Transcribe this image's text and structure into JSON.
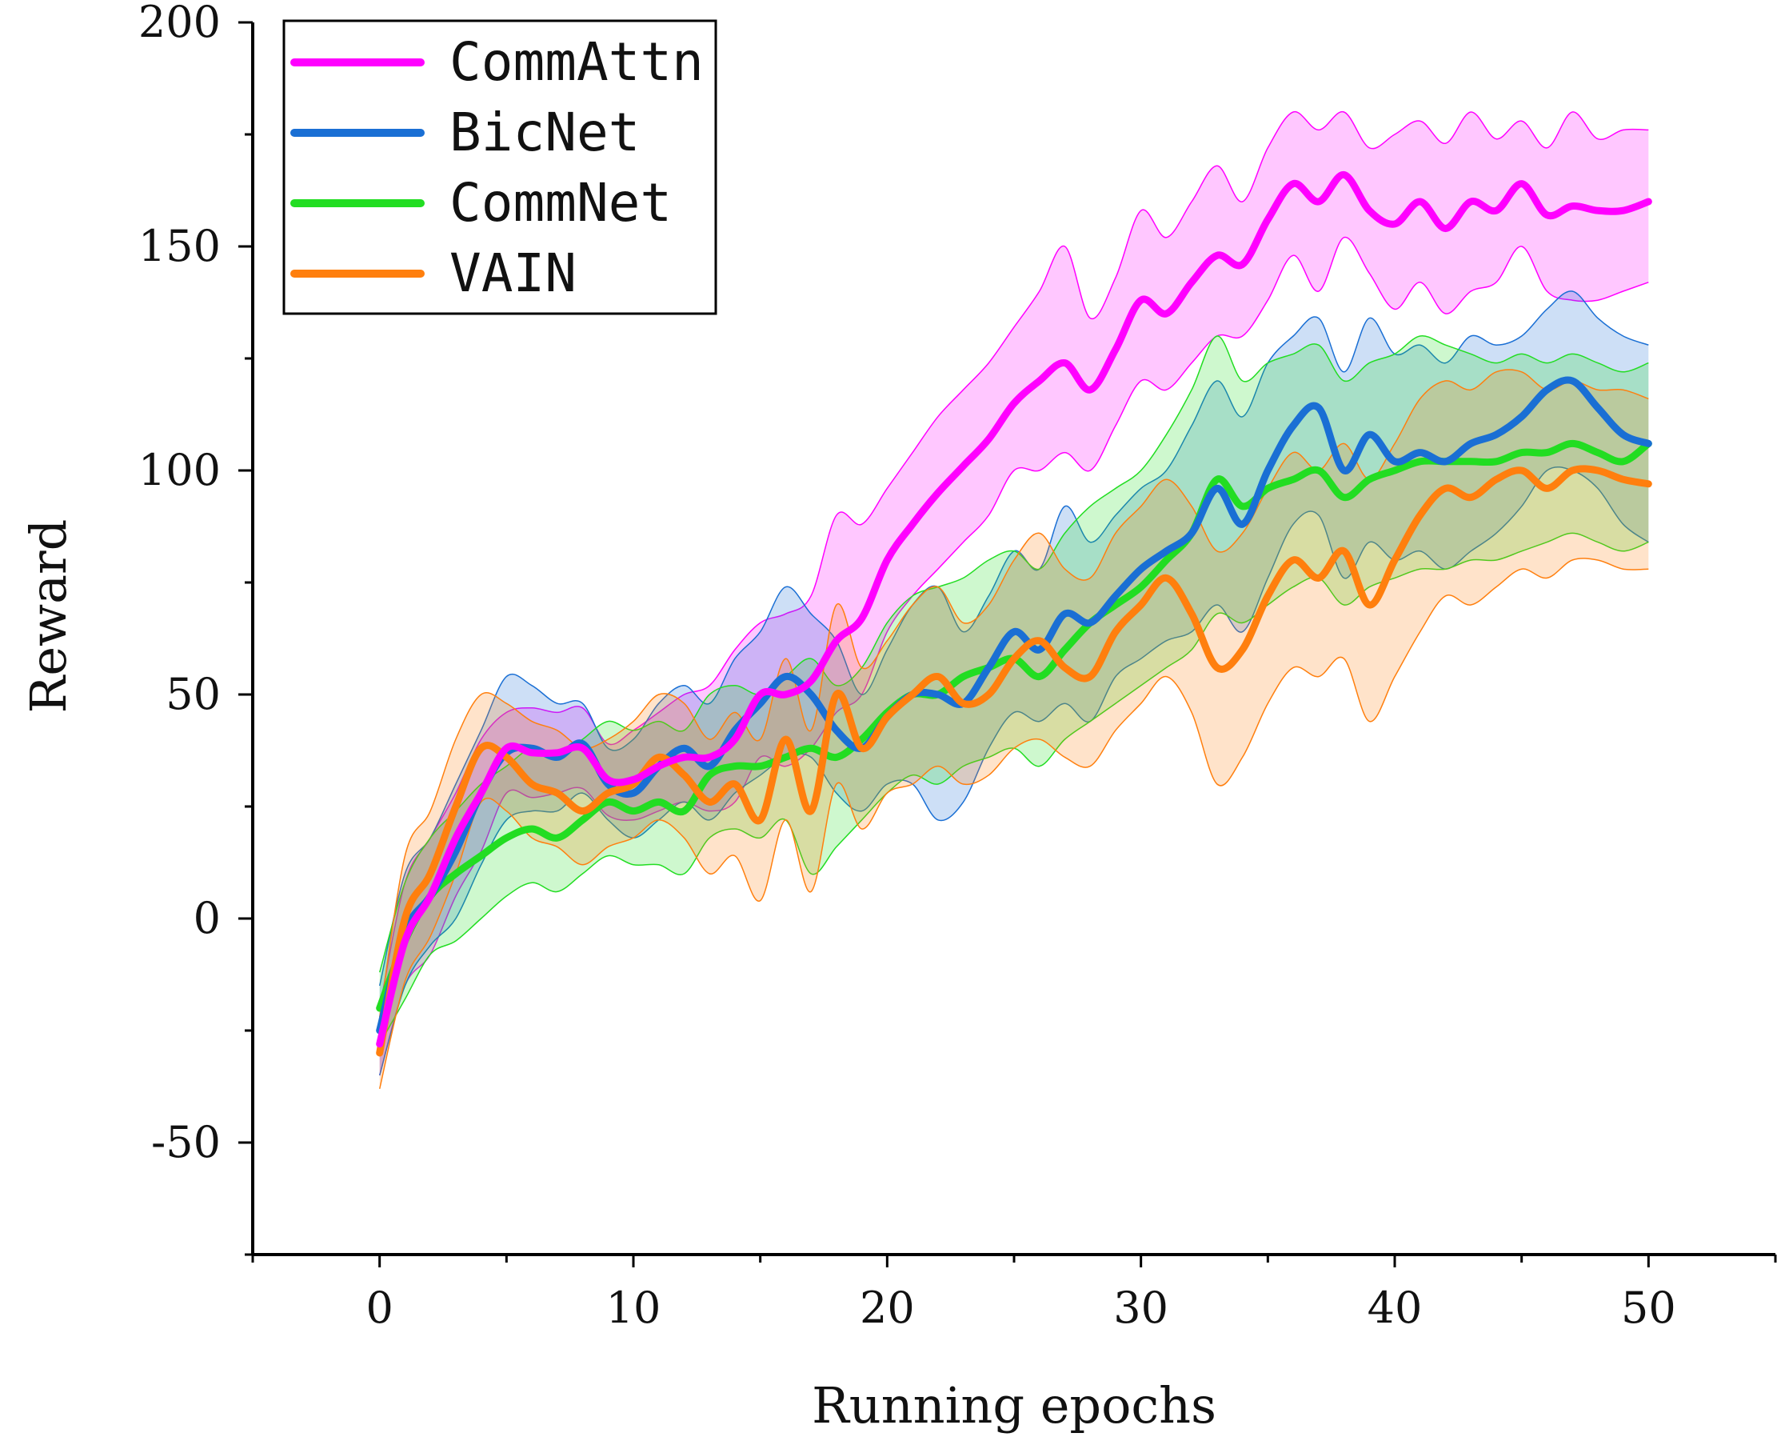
{
  "chart_data": {
    "type": "line",
    "title": "",
    "xlabel": "Running epochs",
    "ylabel": "Reward",
    "xlim": [
      -5,
      55
    ],
    "ylim": [
      -75,
      200
    ],
    "x_ticks": [
      0,
      10,
      20,
      30,
      40,
      50
    ],
    "y_ticks": [
      -50,
      0,
      50,
      100,
      150,
      200
    ],
    "legend_position": "top-left",
    "grid": false,
    "x": [
      0,
      1,
      2,
      3,
      4,
      5,
      6,
      7,
      8,
      9,
      10,
      11,
      12,
      13,
      14,
      15,
      16,
      17,
      18,
      19,
      20,
      21,
      22,
      23,
      24,
      25,
      26,
      27,
      28,
      29,
      30,
      31,
      32,
      33,
      34,
      35,
      36,
      37,
      38,
      39,
      40,
      41,
      42,
      43,
      44,
      45,
      46,
      47,
      48,
      49,
      50
    ],
    "series": [
      {
        "name": "CommAttn",
        "color": "#ff00ff",
        "values": [
          -28,
          -5,
          5,
          18,
          28,
          38,
          37,
          37,
          38,
          31,
          31,
          34,
          36,
          36,
          40,
          50,
          50,
          53,
          62,
          67,
          80,
          88,
          95,
          101,
          107,
          115,
          120,
          124,
          118,
          127,
          138,
          135,
          142,
          148,
          146,
          156,
          164,
          160,
          166,
          158,
          155,
          160,
          154,
          160,
          158,
          164,
          157,
          159,
          158,
          158,
          160
        ],
        "upper": [
          -20,
          8,
          18,
          28,
          40,
          46,
          47,
          46,
          47,
          39,
          42,
          46,
          50,
          52,
          60,
          66,
          68,
          72,
          90,
          88,
          96,
          104,
          112,
          118,
          124,
          132,
          140,
          150,
          134,
          143,
          158,
          152,
          160,
          168,
          160,
          172,
          180,
          176,
          180,
          172,
          175,
          178,
          173,
          180,
          174,
          178,
          172,
          180,
          174,
          176,
          176
        ],
        "lower": [
          -35,
          -15,
          -8,
          5,
          15,
          28,
          27,
          28,
          29,
          23,
          22,
          24,
          26,
          24,
          26,
          36,
          34,
          38,
          46,
          50,
          64,
          72,
          78,
          84,
          90,
          100,
          100,
          104,
          100,
          110,
          120,
          118,
          124,
          130,
          130,
          138,
          148,
          140,
          152,
          144,
          136,
          142,
          135,
          140,
          142,
          150,
          140,
          138,
          138,
          140,
          142
        ]
      },
      {
        "name": "BicNet",
        "color": "#1a6fd4",
        "values": [
          -25,
          -3,
          5,
          15,
          28,
          37,
          38,
          36,
          39,
          30,
          28,
          34,
          38,
          34,
          42,
          48,
          54,
          50,
          42,
          38,
          45,
          50,
          50,
          48,
          56,
          64,
          60,
          68,
          66,
          72,
          78,
          82,
          86,
          96,
          88,
          100,
          110,
          114,
          100,
          108,
          102,
          104,
          102,
          106,
          108,
          112,
          118,
          120,
          114,
          108,
          106
        ],
        "upper": [
          -15,
          10,
          18,
          30,
          42,
          54,
          52,
          48,
          48,
          38,
          40,
          48,
          52,
          48,
          58,
          64,
          74,
          68,
          62,
          50,
          60,
          70,
          74,
          64,
          72,
          82,
          78,
          92,
          84,
          90,
          96,
          100,
          110,
          120,
          112,
          124,
          130,
          134,
          122,
          134,
          126,
          128,
          124,
          130,
          128,
          130,
          136,
          140,
          134,
          130,
          128
        ],
        "lower": [
          -35,
          -15,
          -6,
          0,
          12,
          22,
          24,
          24,
          28,
          22,
          18,
          22,
          26,
          22,
          28,
          32,
          36,
          36,
          28,
          24,
          30,
          30,
          22,
          26,
          38,
          46,
          44,
          48,
          44,
          54,
          58,
          62,
          64,
          70,
          64,
          76,
          88,
          90,
          76,
          84,
          80,
          82,
          78,
          82,
          86,
          92,
          100,
          100,
          96,
          88,
          84
        ]
      },
      {
        "name": "CommNet",
        "color": "#22dd22",
        "values": [
          -20,
          -5,
          5,
          10,
          14,
          18,
          20,
          18,
          22,
          26,
          24,
          26,
          24,
          32,
          34,
          34,
          36,
          38,
          36,
          40,
          46,
          50,
          50,
          54,
          56,
          58,
          54,
          60,
          66,
          70,
          74,
          80,
          86,
          98,
          92,
          96,
          98,
          100,
          94,
          98,
          100,
          102,
          102,
          102,
          102,
          104,
          104,
          106,
          104,
          102,
          106
        ],
        "upper": [
          -12,
          8,
          18,
          24,
          30,
          34,
          38,
          36,
          40,
          44,
          42,
          44,
          42,
          50,
          52,
          50,
          54,
          58,
          52,
          56,
          66,
          72,
          74,
          76,
          80,
          82,
          78,
          86,
          92,
          96,
          100,
          108,
          118,
          130,
          120,
          124,
          126,
          128,
          120,
          124,
          126,
          130,
          128,
          126,
          124,
          126,
          124,
          126,
          124,
          122,
          124
        ],
        "lower": [
          -28,
          -18,
          -8,
          -5,
          0,
          5,
          8,
          6,
          10,
          14,
          12,
          12,
          10,
          18,
          20,
          18,
          22,
          10,
          16,
          22,
          28,
          32,
          30,
          34,
          36,
          38,
          34,
          40,
          44,
          48,
          52,
          56,
          60,
          68,
          66,
          70,
          74,
          76,
          70,
          74,
          76,
          78,
          78,
          80,
          80,
          82,
          84,
          86,
          84,
          82,
          84
        ]
      },
      {
        "name": "VAIN",
        "color": "#ff7f0e",
        "values": [
          -30,
          0,
          10,
          25,
          38,
          36,
          30,
          28,
          24,
          28,
          30,
          36,
          32,
          26,
          30,
          22,
          40,
          24,
          50,
          38,
          45,
          50,
          54,
          48,
          50,
          58,
          62,
          56,
          54,
          64,
          70,
          76,
          68,
          56,
          60,
          72,
          80,
          76,
          82,
          70,
          80,
          90,
          96,
          94,
          98,
          100,
          96,
          100,
          100,
          98,
          97
        ],
        "upper": [
          -22,
          14,
          24,
          40,
          50,
          48,
          44,
          42,
          38,
          40,
          44,
          50,
          48,
          40,
          46,
          40,
          58,
          42,
          70,
          56,
          62,
          70,
          74,
          66,
          70,
          80,
          86,
          78,
          76,
          86,
          92,
          98,
          92,
          82,
          86,
          96,
          104,
          100,
          106,
          98,
          106,
          116,
          120,
          118,
          122,
          122,
          118,
          120,
          118,
          118,
          116
        ],
        "lower": [
          -38,
          -14,
          -4,
          10,
          26,
          24,
          18,
          16,
          12,
          16,
          18,
          22,
          18,
          10,
          14,
          4,
          22,
          6,
          30,
          20,
          28,
          30,
          34,
          30,
          32,
          38,
          40,
          36,
          34,
          42,
          48,
          54,
          46,
          30,
          36,
          48,
          56,
          54,
          58,
          44,
          54,
          64,
          72,
          70,
          74,
          78,
          76,
          80,
          80,
          78,
          78
        ]
      }
    ]
  }
}
